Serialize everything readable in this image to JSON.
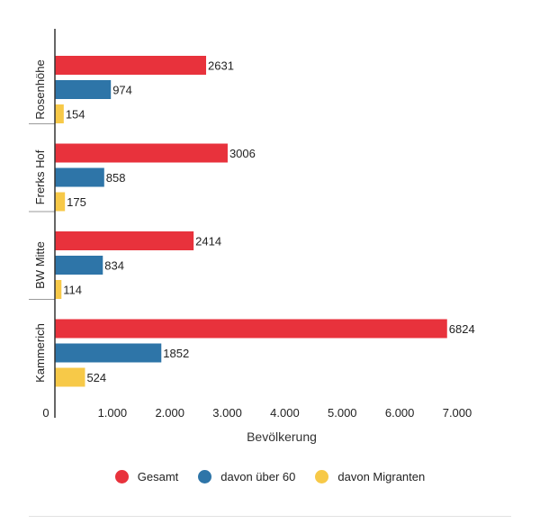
{
  "chart_data": {
    "type": "bar",
    "orientation": "horizontal",
    "categories": [
      "Rosenhöhe",
      "Frerks Hof",
      "BW Mitte",
      "Kammerich"
    ],
    "series": [
      {
        "name": "Gesamt",
        "color": "#e8323c",
        "values": [
          2631,
          3006,
          2414,
          6824
        ]
      },
      {
        "name": "davon über 60",
        "color": "#2e75a8",
        "values": [
          974,
          858,
          834,
          1852
        ]
      },
      {
        "name": "davon Migranten",
        "color": "#f7c948",
        "values": [
          154,
          175,
          114,
          524
        ]
      }
    ],
    "xlabel": "Bevölkerung",
    "xlim": [
      0,
      7000
    ],
    "xticks": [
      0,
      1000,
      2000,
      3000,
      4000,
      5000,
      6000,
      7000
    ],
    "xtick_labels": [
      "0",
      "1.000",
      "2.000",
      "3.000",
      "4.000",
      "5.000",
      "6.000",
      "7.000"
    ],
    "legend_position": "bottom"
  }
}
